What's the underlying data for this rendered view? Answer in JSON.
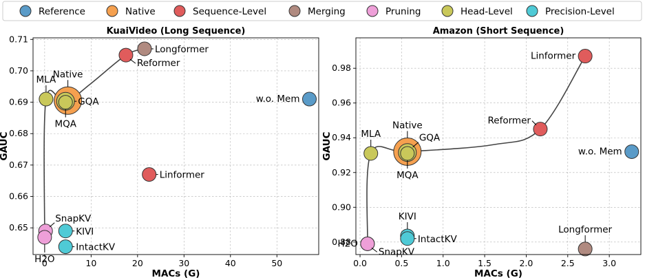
{
  "legend": [
    {
      "name": "Reference",
      "color": "#5a9bc8"
    },
    {
      "name": "Native",
      "color": "#f5a04f"
    },
    {
      "name": "Sequence-Level",
      "color": "#e05c5c"
    },
    {
      "name": "Merging",
      "color": "#b08a80"
    },
    {
      "name": "Pruning",
      "color": "#ee9fd8"
    },
    {
      "name": "Head-Level",
      "color": "#c9c85a"
    },
    {
      "name": "Precision-Level",
      "color": "#4fcad6"
    }
  ],
  "chart_data": [
    {
      "type": "scatter",
      "title": "KuaiVideo (Long Sequence)",
      "xlabel": "MACs (G)",
      "ylabel": "GAUC",
      "xlim": [
        -2.5,
        59
      ],
      "ylim": [
        0.6415,
        0.7105
      ],
      "xticks": [
        0,
        10,
        20,
        30,
        40,
        50
      ],
      "xtick_labels": [
        "0",
        "10",
        "20",
        "30",
        "40",
        "50"
      ],
      "yticks": [
        0.65,
        0.66,
        0.67,
        0.68,
        0.69,
        0.7,
        0.71
      ],
      "ytick_labels": [
        "0.65",
        "0.66",
        "0.67",
        "0.68",
        "0.69",
        "0.70",
        "0.71"
      ],
      "grid": true,
      "points": [
        {
          "label": "w.o. Mem",
          "x": 57.0,
          "y": 0.691,
          "category": "Reference",
          "size": "small",
          "label_pos": "left"
        },
        {
          "label": "Native",
          "x": 5.0,
          "y": 0.6905,
          "category": "Native",
          "size": "large",
          "label_pos": "above"
        },
        {
          "label": "MLA",
          "x": 0.3,
          "y": 0.691,
          "category": "Head-Level",
          "size": "small",
          "label_pos": "above"
        },
        {
          "label": "GQA",
          "x": 4.5,
          "y": 0.6903,
          "category": "Head-Level",
          "size": "medium",
          "label_pos": "right"
        },
        {
          "label": "MQA",
          "x": 4.5,
          "y": 0.69,
          "category": "Head-Level",
          "size": "small",
          "label_pos": "below"
        },
        {
          "label": "Reformer",
          "x": 17.5,
          "y": 0.705,
          "category": "Sequence-Level",
          "size": "small",
          "label_pos": "below-right"
        },
        {
          "label": "Longformer",
          "x": 21.5,
          "y": 0.707,
          "category": "Merging",
          "size": "small",
          "label_pos": "right"
        },
        {
          "label": "Linformer",
          "x": 22.5,
          "y": 0.667,
          "category": "Sequence-Level",
          "size": "small",
          "label_pos": "right"
        },
        {
          "label": "SnapKV",
          "x": 0.2,
          "y": 0.649,
          "category": "Pruning",
          "size": "small",
          "label_pos": "above-right"
        },
        {
          "label": "H2O",
          "x": 0.0,
          "y": 0.647,
          "category": "Pruning",
          "size": "small",
          "label_pos": "below"
        },
        {
          "label": "KIVI",
          "x": 4.5,
          "y": 0.649,
          "category": "Precision-Level",
          "size": "small",
          "label_pos": "right"
        },
        {
          "label": "IntactKV",
          "x": 4.5,
          "y": 0.644,
          "category": "Precision-Level",
          "size": "small",
          "label_pos": "right"
        }
      ],
      "trend_line": [
        [
          0.0,
          0.647
        ],
        [
          0.3,
          0.691
        ],
        [
          4.5,
          0.69
        ],
        [
          10.0,
          0.696
        ],
        [
          17.5,
          0.705
        ],
        [
          21.5,
          0.707
        ]
      ]
    },
    {
      "type": "scatter",
      "title": "Amazon (Short Sequence)",
      "xlabel": "MACs (G)",
      "ylabel": "GAUC",
      "xlim": [
        -0.05,
        3.38
      ],
      "ylim": [
        0.8728,
        0.9975
      ],
      "xticks": [
        0.0,
        0.5,
        1.0,
        1.5,
        2.0,
        2.5,
        3.0
      ],
      "xtick_labels": [
        "0.0",
        "0.5",
        "1.0",
        "1.5",
        "2.0",
        "2.5",
        "3.0"
      ],
      "yticks": [
        0.88,
        0.9,
        0.92,
        0.94,
        0.96,
        0.98
      ],
      "ytick_labels": [
        "0.88",
        "0.90",
        "0.92",
        "0.94",
        "0.96",
        "0.98"
      ],
      "grid": true,
      "points": [
        {
          "label": "w.o. Mem",
          "x": 3.27,
          "y": 0.932,
          "category": "Reference",
          "size": "small",
          "label_pos": "left"
        },
        {
          "label": "Linformer",
          "x": 2.71,
          "y": 0.987,
          "category": "Sequence-Level",
          "size": "small",
          "label_pos": "left"
        },
        {
          "label": "Reformer",
          "x": 2.17,
          "y": 0.945,
          "category": "Sequence-Level",
          "size": "small",
          "label_pos": "above-left"
        },
        {
          "label": "Native",
          "x": 0.57,
          "y": 0.932,
          "category": "Native",
          "size": "large",
          "label_pos": "above"
        },
        {
          "label": "GQA",
          "x": 0.57,
          "y": 0.9315,
          "category": "Head-Level",
          "size": "medium",
          "label_pos": "above-right"
        },
        {
          "label": "MQA",
          "x": 0.57,
          "y": 0.931,
          "category": "Head-Level",
          "size": "small",
          "label_pos": "below"
        },
        {
          "label": "MLA",
          "x": 0.13,
          "y": 0.931,
          "category": "Head-Level",
          "size": "small",
          "label_pos": "above"
        },
        {
          "label": "KIVI",
          "x": 0.57,
          "y": 0.8835,
          "category": "Precision-Level",
          "size": "small",
          "label_pos": "above"
        },
        {
          "label": "IntactKV",
          "x": 0.57,
          "y": 0.882,
          "category": "Precision-Level",
          "size": "small",
          "label_pos": "right"
        },
        {
          "label": "H2O",
          "x": 0.09,
          "y": 0.879,
          "category": "Pruning",
          "size": "small",
          "label_pos": "left"
        },
        {
          "label": "SnapKV",
          "x": 0.09,
          "y": 0.879,
          "category": "Pruning",
          "size": "small",
          "label_pos": "below-right"
        },
        {
          "label": "Longformer",
          "x": 2.71,
          "y": 0.876,
          "category": "Merging",
          "size": "small",
          "label_pos": "above"
        }
      ],
      "trend_line": [
        [
          0.09,
          0.879
        ],
        [
          0.13,
          0.931
        ],
        [
          0.57,
          0.932
        ],
        [
          1.6,
          0.936
        ],
        [
          2.17,
          0.945
        ],
        [
          2.71,
          0.987
        ]
      ]
    }
  ]
}
